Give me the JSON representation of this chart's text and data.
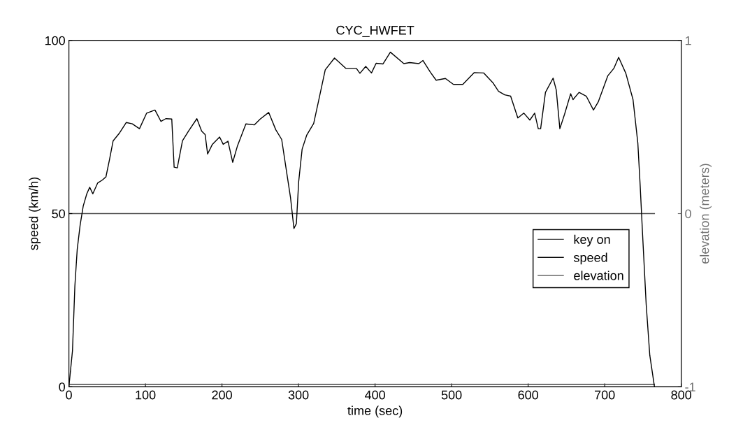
{
  "chart_data": {
    "type": "line",
    "title": "CYC_HWFET",
    "xlabel": "time (sec)",
    "ylabel": "speed (km/h)",
    "y2label": "elevation (meters)",
    "xlim": [
      0,
      800
    ],
    "xticks": [
      0,
      100,
      200,
      300,
      400,
      500,
      600,
      700,
      800
    ],
    "ylim": [
      0,
      100
    ],
    "yticks": [
      0,
      50,
      100
    ],
    "y2lim": [
      -1,
      1
    ],
    "y2ticks": [
      -1,
      0,
      1
    ],
    "grid": false,
    "legend": "center right",
    "marker": "none",
    "line_style": "solid",
    "series": [
      {
        "name": "key on",
        "color": "#404040",
        "axis": "y",
        "x": [
          0,
          765
        ],
        "values": [
          0.7,
          0.7
        ]
      },
      {
        "name": "speed",
        "color": "#000000",
        "axis": "y",
        "x": [
          0,
          4.7,
          7.8,
          10.9,
          14.7,
          18.75,
          23.4,
          27.2,
          31.25,
          37.5,
          43.75,
          48.4,
          53,
          57.8,
          65.6,
          75,
          82.8,
          92.2,
          101.6,
          112.5,
          120.3,
          126.6,
          134.4,
          137.5,
          141.6,
          148.4,
          156.25,
          167.2,
          173.4,
          178,
          181.25,
          187.5,
          196.9,
          201.6,
          207.8,
          214,
          220.3,
          231.25,
          242.2,
          250,
          261,
          270.3,
          278,
          285,
          289.6,
          294,
          297.2,
          300.2,
          304.7,
          310.8,
          319.8,
          325.8,
          334.9,
          347,
          362,
          375.6,
          380.2,
          387.8,
          395.3,
          401.4,
          410.4,
          420,
          437.6,
          445.2,
          457.2,
          462.6,
          472.3,
          479.8,
          491.9,
          502.4,
          514.6,
          529.6,
          541.8,
          553.8,
          561.3,
          569.3,
          577.1,
          586.5,
          594.4,
          602.2,
          608.5,
          613.2,
          616.3,
          622.6,
          632.6,
          636.7,
          641.4,
          647.6,
          655.5,
          658.6,
          666.5,
          675.9,
          685.3,
          691.5,
          704.1,
          711.9,
          718.2,
          727.6,
          737,
          743.3,
          746.4,
          749.5,
          754.2,
          758.9,
          765
        ],
        "values": [
          0,
          10.4,
          29,
          39.7,
          46.7,
          52.2,
          55.7,
          57.6,
          55.7,
          58.8,
          59.7,
          60.6,
          65.5,
          71,
          73.1,
          76.3,
          75.9,
          74.5,
          79,
          79.9,
          76.6,
          77.4,
          77.3,
          63.4,
          63.2,
          71,
          73.8,
          77.4,
          73.8,
          72.8,
          67.2,
          70,
          72.1,
          70,
          70.9,
          64.8,
          69.6,
          75.9,
          75.6,
          77.3,
          79.2,
          74.2,
          71.4,
          61.2,
          54.5,
          45.7,
          47.1,
          59.2,
          68.6,
          72.7,
          76,
          82.1,
          91.5,
          94.9,
          91.9,
          91.9,
          90.5,
          92.5,
          90.6,
          93.4,
          93.2,
          96.6,
          93.3,
          93.6,
          93.3,
          94.2,
          90.8,
          88.5,
          89,
          87.3,
          87.3,
          90.7,
          90.6,
          87.8,
          85.3,
          84.3,
          83.9,
          77.6,
          79,
          77,
          79,
          74.5,
          74.5,
          85,
          89.1,
          85.7,
          74.5,
          78.7,
          84.6,
          82.9,
          85,
          83.9,
          79.9,
          82.2,
          89.8,
          91.9,
          95.1,
          90.5,
          82.9,
          70.3,
          57.8,
          43.9,
          23.7,
          9.1,
          0
        ]
      },
      {
        "name": "elevation",
        "color": "#505050",
        "axis": "y2",
        "x": [
          0,
          765
        ],
        "values": [
          0,
          0
        ]
      }
    ]
  }
}
